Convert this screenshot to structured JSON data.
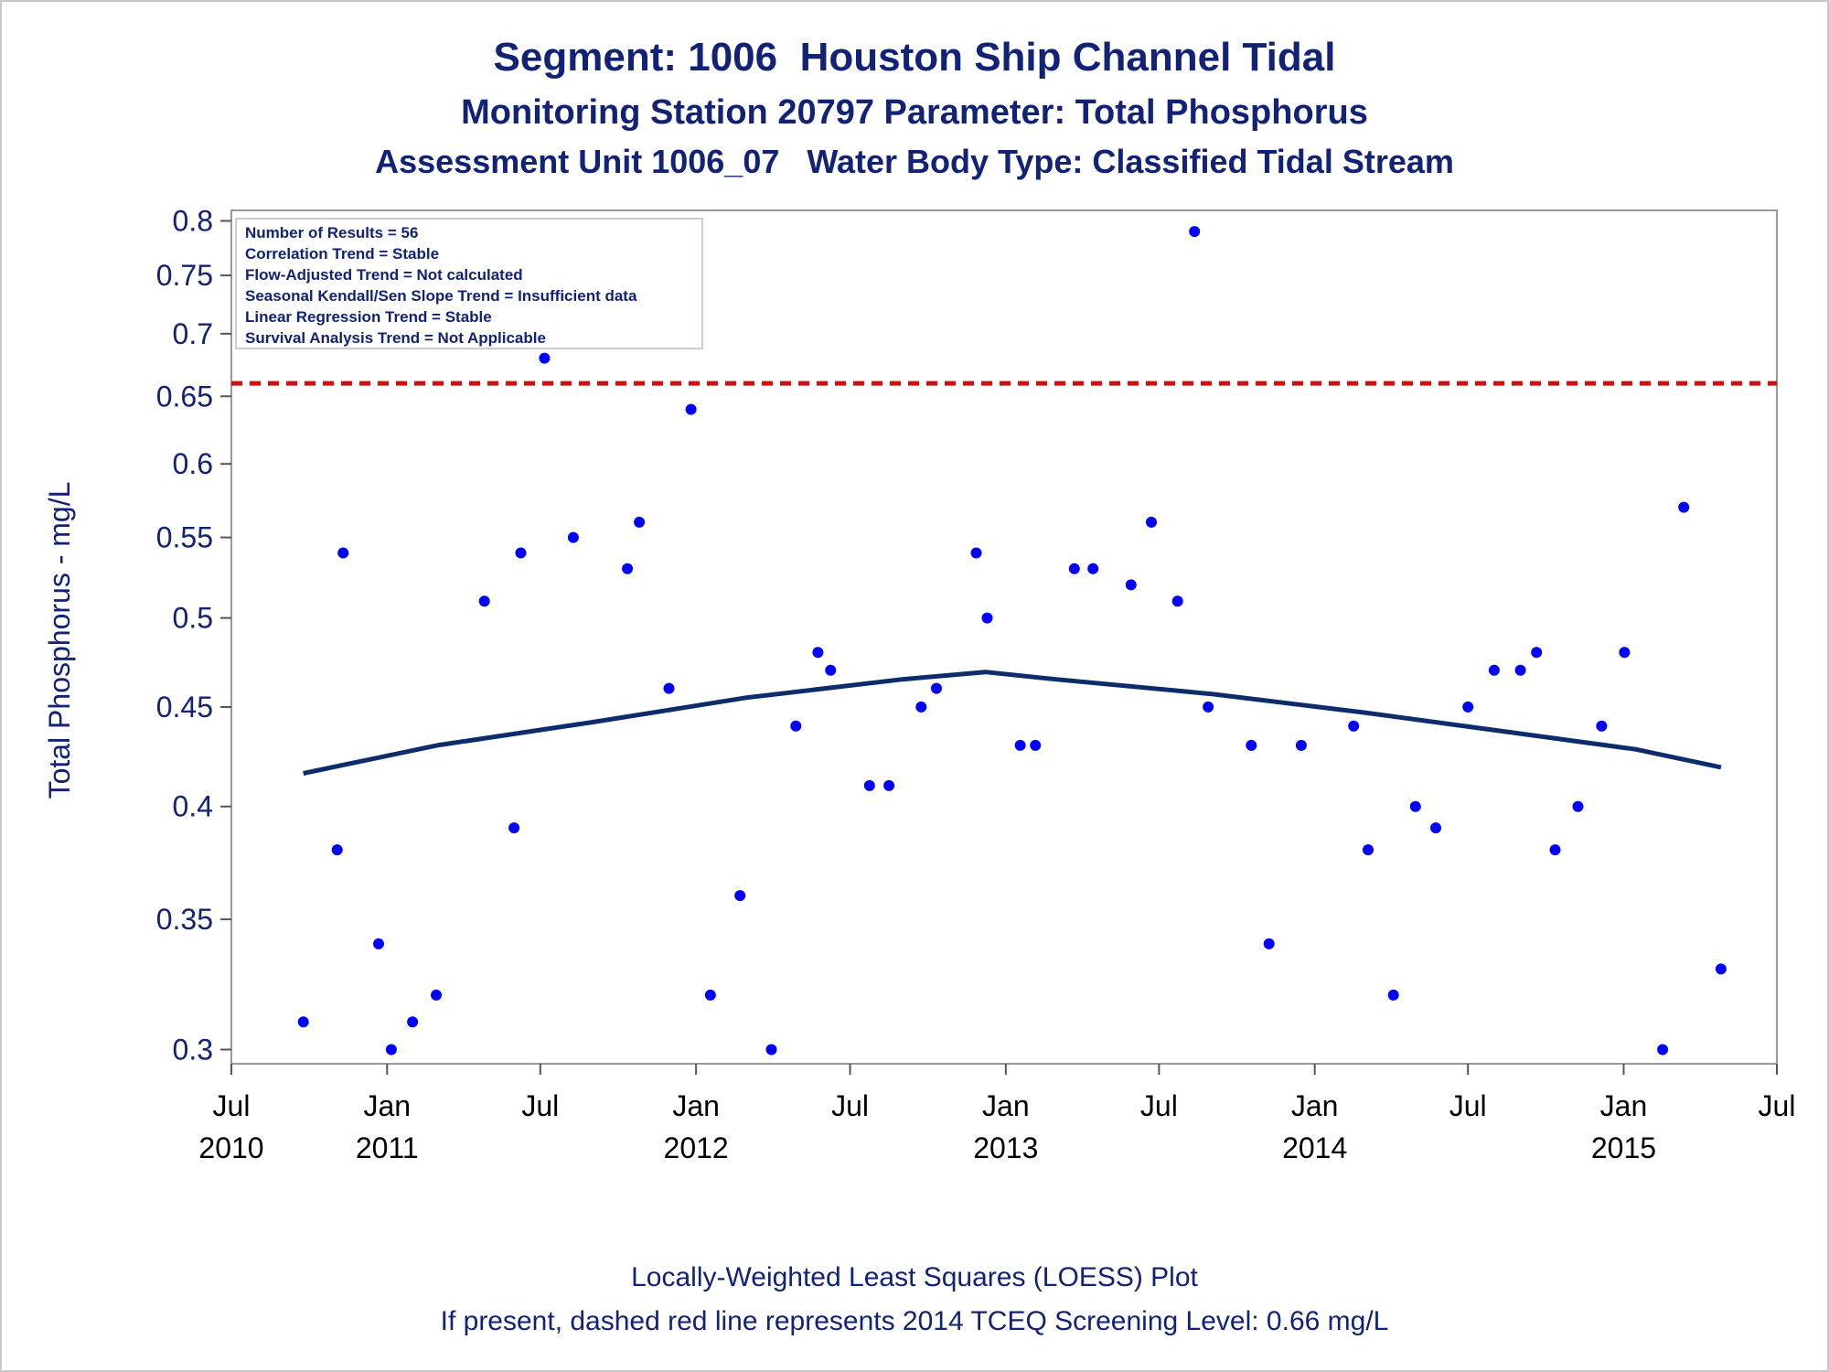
{
  "title": "Segment: 1006  Houston Ship Channel Tidal",
  "subtitle": "Monitoring Station 20797 Parameter: Total Phosphorus",
  "subtitle2": "Assessment Unit 1006_07   Water Body Type: Classified Tidal Stream",
  "footnote1": "Locally-Weighted Least Squares (LOESS) Plot",
  "footnote2": "If present, dashed red line represents 2014 TCEQ Screening Level: 0.66 mg/L",
  "stats": [
    "Number of Results = 56",
    "Correlation Trend = Stable",
    "Flow-Adjusted Trend = Not calculated",
    "Seasonal Kendall/Sen Slope Trend = Insufficient data",
    "Linear Regression Trend = Stable",
    "Survival Analysis Trend = Not Applicable"
  ],
  "colors": {
    "text": "#112277",
    "points": "#0000ff",
    "loess": "#0d2c6c",
    "screening": "#cc1111",
    "axis": "#999999"
  },
  "chart_data": {
    "type": "scatter",
    "ylabel": "Total Phosphorus - mg/L",
    "y_scale": "log",
    "ylim": [
      0.295,
      0.81
    ],
    "xlim": [
      "2010-07-01",
      "2015-07-01"
    ],
    "y_ticks": [
      0.3,
      0.35,
      0.4,
      0.45,
      0.5,
      0.55,
      0.6,
      0.65,
      0.7,
      0.75,
      0.8
    ],
    "x_ticks": [
      {
        "date": "2010-07-01",
        "label1": "Jul",
        "label2": "2010"
      },
      {
        "date": "2011-01-01",
        "label1": "Jan",
        "label2": "2011"
      },
      {
        "date": "2011-07-01",
        "label1": "Jul",
        "label2": ""
      },
      {
        "date": "2012-01-01",
        "label1": "Jan",
        "label2": "2012"
      },
      {
        "date": "2012-07-01",
        "label1": "Jul",
        "label2": ""
      },
      {
        "date": "2013-01-01",
        "label1": "Jan",
        "label2": "2013"
      },
      {
        "date": "2013-07-01",
        "label1": "Jul",
        "label2": ""
      },
      {
        "date": "2014-01-01",
        "label1": "Jan",
        "label2": "2014"
      },
      {
        "date": "2014-07-01",
        "label1": "Jul",
        "label2": ""
      },
      {
        "date": "2015-01-01",
        "label1": "Jan",
        "label2": "2015"
      },
      {
        "date": "2015-07-01",
        "label1": "Jul",
        "label2": ""
      }
    ],
    "points": [
      {
        "x": "2010-09-24",
        "y": 0.31
      },
      {
        "x": "2010-11-03",
        "y": 0.38
      },
      {
        "x": "2010-11-10",
        "y": 0.54
      },
      {
        "x": "2010-12-22",
        "y": 0.34
      },
      {
        "x": "2011-01-06",
        "y": 0.3
      },
      {
        "x": "2011-01-31",
        "y": 0.31
      },
      {
        "x": "2011-02-28",
        "y": 0.32
      },
      {
        "x": "2011-04-26",
        "y": 0.51
      },
      {
        "x": "2011-05-31",
        "y": 0.39
      },
      {
        "x": "2011-06-08",
        "y": 0.54
      },
      {
        "x": "2011-07-06",
        "y": 0.68
      },
      {
        "x": "2011-08-09",
        "y": 0.55
      },
      {
        "x": "2011-10-12",
        "y": 0.53
      },
      {
        "x": "2011-10-26",
        "y": 0.56
      },
      {
        "x": "2011-11-30",
        "y": 0.46
      },
      {
        "x": "2011-12-26",
        "y": 0.64
      },
      {
        "x": "2012-01-18",
        "y": 0.32
      },
      {
        "x": "2012-02-22",
        "y": 0.36
      },
      {
        "x": "2012-03-30",
        "y": 0.3
      },
      {
        "x": "2012-04-28",
        "y": 0.44
      },
      {
        "x": "2012-05-24",
        "y": 0.48
      },
      {
        "x": "2012-06-08",
        "y": 0.47
      },
      {
        "x": "2012-07-24",
        "y": 0.41
      },
      {
        "x": "2012-08-16",
        "y": 0.41
      },
      {
        "x": "2012-09-23",
        "y": 0.45
      },
      {
        "x": "2012-10-11",
        "y": 0.46
      },
      {
        "x": "2012-11-27",
        "y": 0.54
      },
      {
        "x": "2012-12-10",
        "y": 0.5
      },
      {
        "x": "2013-01-18",
        "y": 0.43
      },
      {
        "x": "2013-02-05",
        "y": 0.43
      },
      {
        "x": "2013-03-23",
        "y": 0.53
      },
      {
        "x": "2013-04-14",
        "y": 0.53
      },
      {
        "x": "2013-05-29",
        "y": 0.52
      },
      {
        "x": "2013-06-22",
        "y": 0.56
      },
      {
        "x": "2013-07-23",
        "y": 0.51
      },
      {
        "x": "2013-08-12",
        "y": 0.79
      },
      {
        "x": "2013-08-28",
        "y": 0.45
      },
      {
        "x": "2013-10-18",
        "y": 0.43
      },
      {
        "x": "2013-11-08",
        "y": 0.34
      },
      {
        "x": "2013-12-16",
        "y": 0.43
      },
      {
        "x": "2014-02-16",
        "y": 0.44
      },
      {
        "x": "2014-03-05",
        "y": 0.38
      },
      {
        "x": "2014-04-04",
        "y": 0.32
      },
      {
        "x": "2014-04-30",
        "y": 0.4
      },
      {
        "x": "2014-05-24",
        "y": 0.39
      },
      {
        "x": "2014-07-01",
        "y": 0.45
      },
      {
        "x": "2014-08-01",
        "y": 0.47
      },
      {
        "x": "2014-09-01",
        "y": 0.47
      },
      {
        "x": "2014-09-20",
        "y": 0.48
      },
      {
        "x": "2014-10-12",
        "y": 0.38
      },
      {
        "x": "2014-11-08",
        "y": 0.4
      },
      {
        "x": "2014-12-06",
        "y": 0.44
      },
      {
        "x": "2015-01-02",
        "y": 0.48
      },
      {
        "x": "2015-02-16",
        "y": 0.3
      },
      {
        "x": "2015-03-13",
        "y": 0.57
      },
      {
        "x": "2015-04-26",
        "y": 0.33
      }
    ],
    "loess": [
      {
        "x": "2010-09-24",
        "y": 0.416
      },
      {
        "x": "2011-03-01",
        "y": 0.43
      },
      {
        "x": "2011-09-01",
        "y": 0.442
      },
      {
        "x": "2012-03-01",
        "y": 0.455
      },
      {
        "x": "2012-09-01",
        "y": 0.465
      },
      {
        "x": "2012-12-08",
        "y": 0.469
      },
      {
        "x": "2013-03-01",
        "y": 0.465
      },
      {
        "x": "2013-09-01",
        "y": 0.457
      },
      {
        "x": "2014-03-01",
        "y": 0.447
      },
      {
        "x": "2014-09-01",
        "y": 0.436
      },
      {
        "x": "2015-01-15",
        "y": 0.428
      },
      {
        "x": "2015-04-26",
        "y": 0.419
      }
    ],
    "reference_line": {
      "y": 0.66,
      "style": "dashed"
    }
  }
}
